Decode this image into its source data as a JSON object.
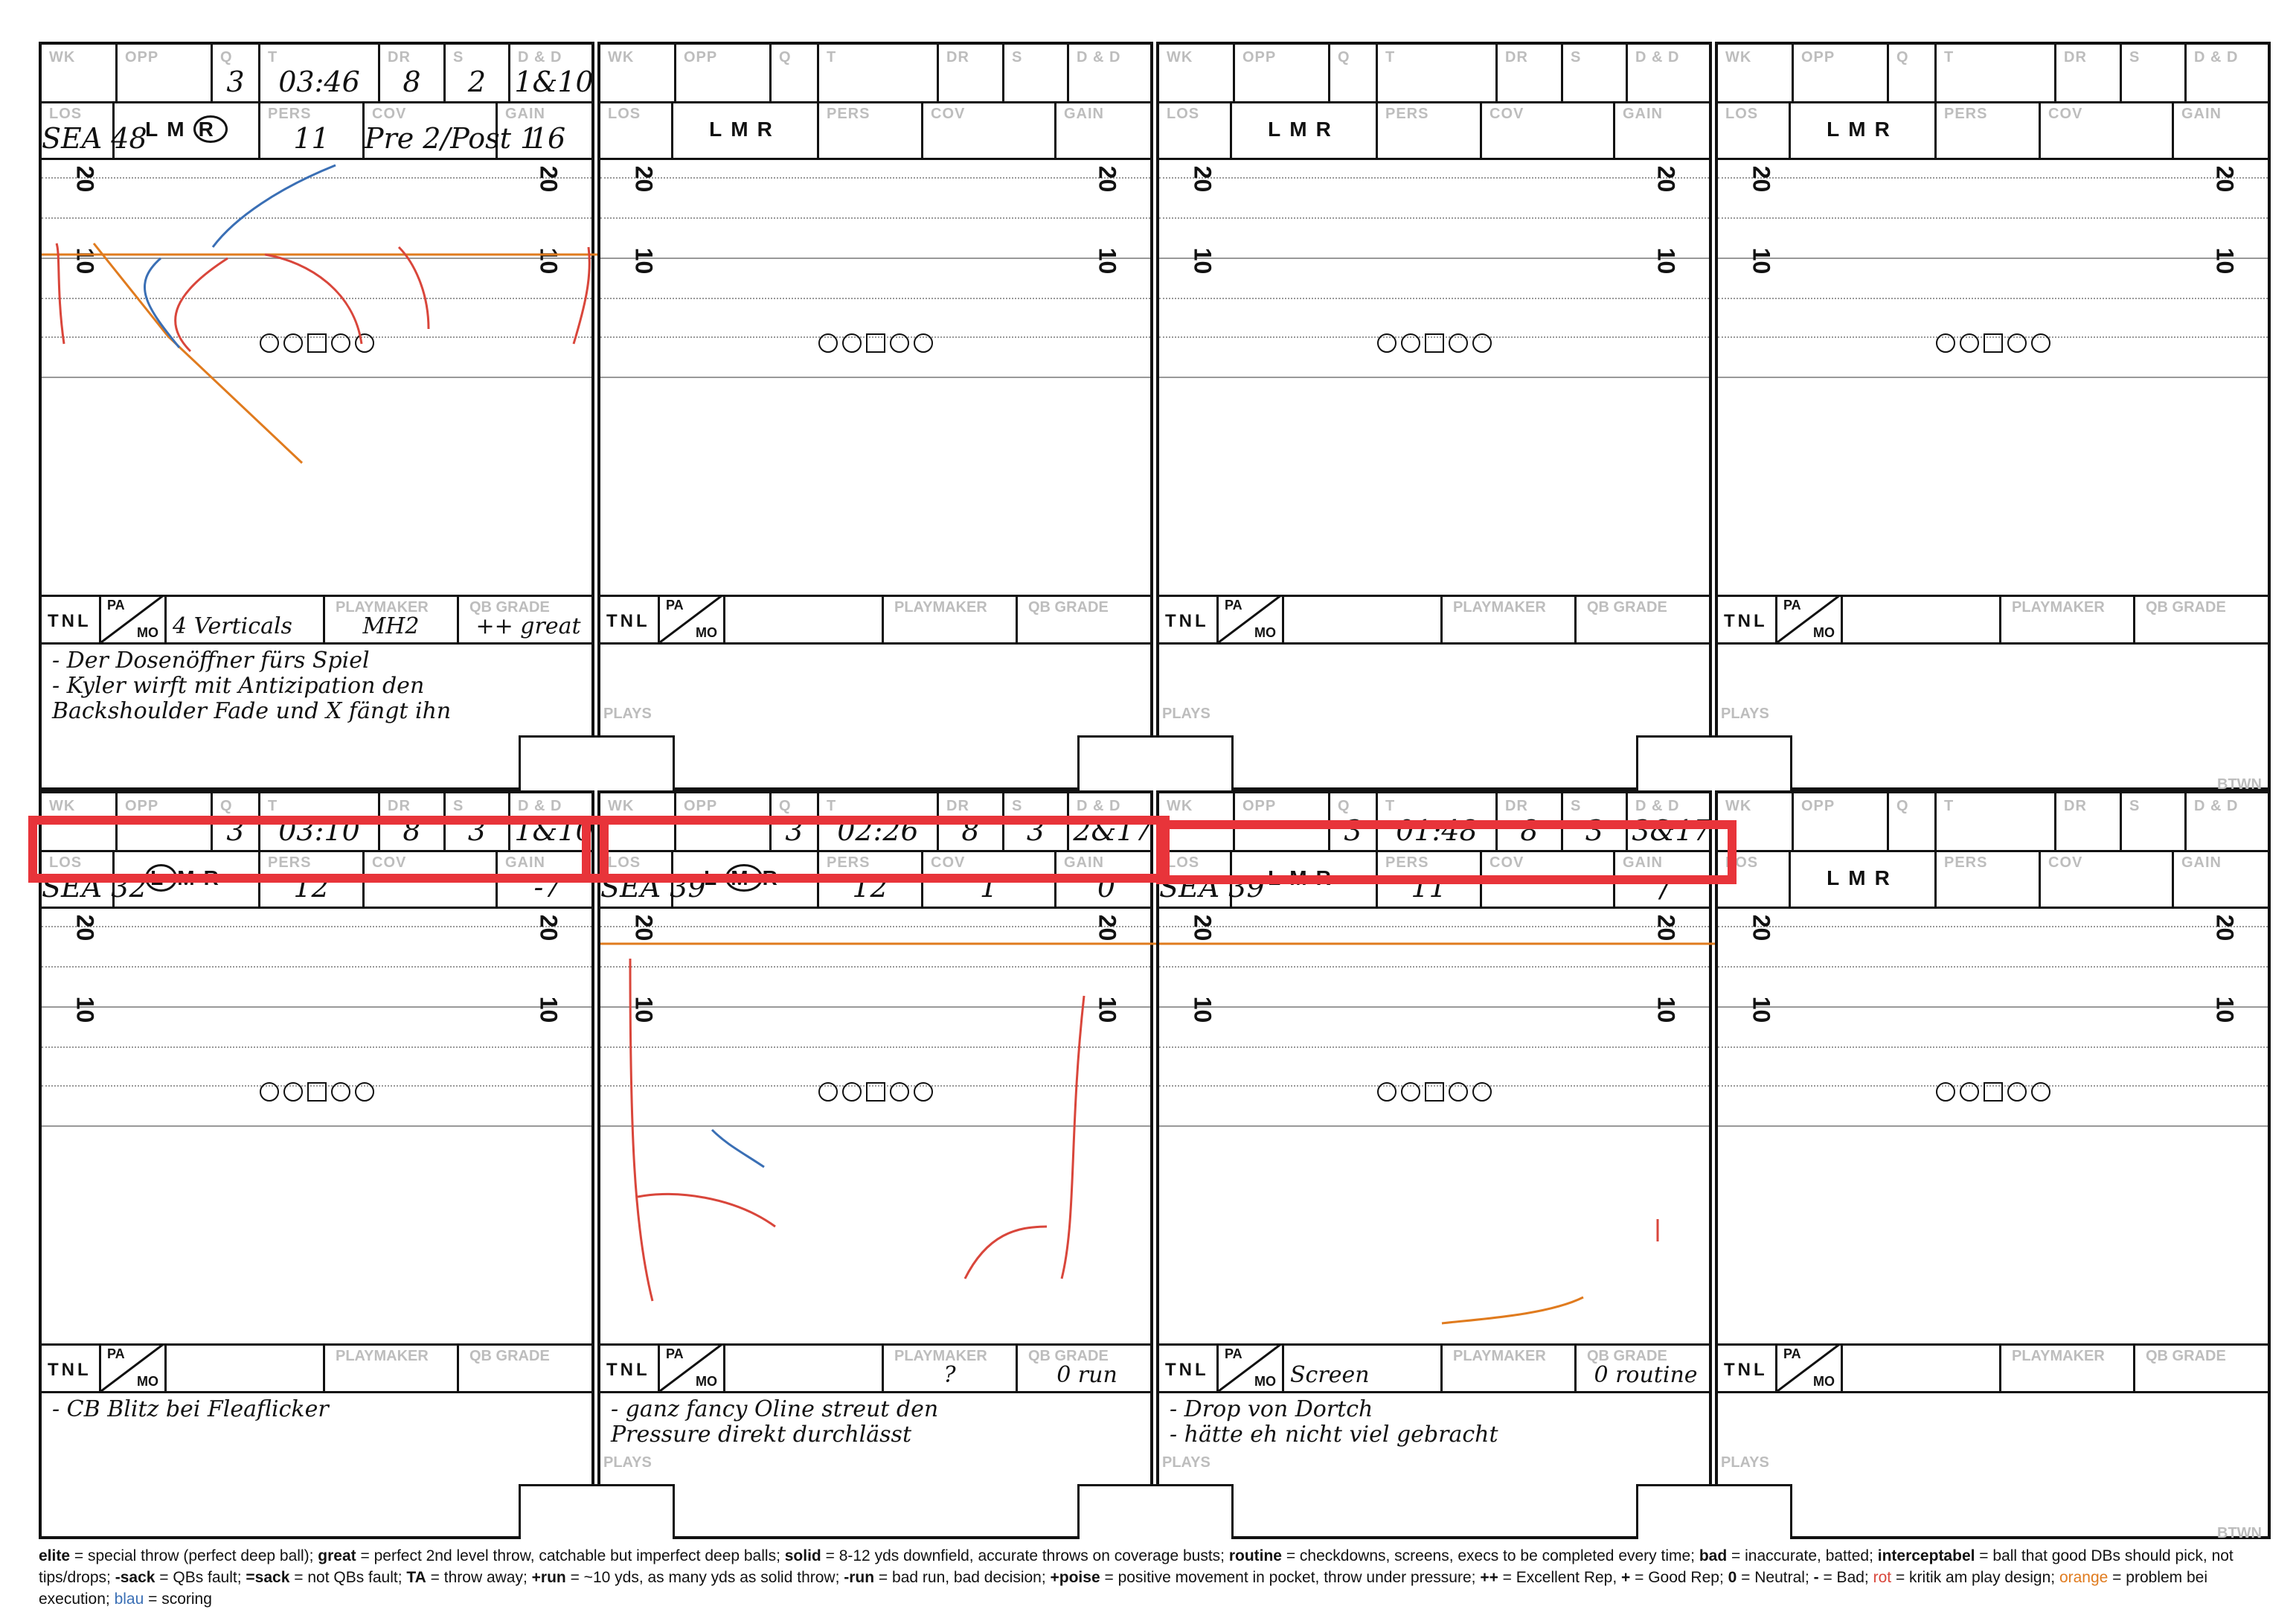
{
  "labels": {
    "wk": "WK",
    "opp": "OPP",
    "q": "Q",
    "t": "T",
    "dr": "DR",
    "s": "S",
    "dd": "D & D",
    "los": "LOS",
    "lmr": "LMR",
    "pers": "PERS",
    "cov": "COV",
    "gain": "GAIN",
    "tnl": "TNL",
    "pa": "PA",
    "mo": "MO",
    "playmaker": "PLAYMAKER",
    "qb_grade": "QB GRADE",
    "btwn": "BTWN",
    "plays": "PLAYS",
    "yard_20": "20",
    "yard_10": "10"
  },
  "cards": [
    {
      "q": "3",
      "t": "03:46",
      "dr": "8",
      "s": "2",
      "dd": "1&10",
      "los": "SEA 48",
      "lmr_circled": "R",
      "pers": "11",
      "cov": "Pre 2/Post 1",
      "gain": "16",
      "tnl": "",
      "pm": "MH2",
      "grade": "++ great",
      "play": "4 Verticals",
      "note": "- Der Dosenöffner fürs Spiel\n- Kyler wirft mit Antizipation den Backshoulder Fade und X fängt ihn"
    },
    {
      "q": "",
      "t": "",
      "dr": "",
      "s": "",
      "dd": "",
      "los": "",
      "lmr_circled": "",
      "pers": "",
      "cov": "",
      "gain": "",
      "tnl": "",
      "pm": "",
      "grade": "",
      "play": "",
      "note": ""
    },
    {
      "q": "",
      "t": "",
      "dr": "",
      "s": "",
      "dd": "",
      "los": "",
      "lmr_circled": "",
      "pers": "",
      "cov": "",
      "gain": "",
      "tnl": "",
      "pm": "",
      "grade": "",
      "play": "",
      "note": ""
    },
    {
      "q": "",
      "t": "",
      "dr": "",
      "s": "",
      "dd": "",
      "los": "",
      "lmr_circled": "",
      "pers": "",
      "cov": "",
      "gain": "",
      "tnl": "",
      "pm": "",
      "grade": "",
      "play": "",
      "note": ""
    },
    {
      "q": "3",
      "t": "03:10",
      "dr": "8",
      "s": "3",
      "dd": "1&10",
      "los": "SEA 32",
      "lmr_circled": "L",
      "pers": "12",
      "cov": "",
      "gain": "-7",
      "tnl": "",
      "pm": "",
      "grade": "",
      "play": "",
      "note": "- CB Blitz bei Fleaflicker"
    },
    {
      "q": "3",
      "t": "02:26",
      "dr": "8",
      "s": "3",
      "dd": "2&17",
      "los": "SEA 39",
      "lmr_circled": "M",
      "pers": "12",
      "cov": "1",
      "gain": "0",
      "tnl": "",
      "pm": "?",
      "grade": "0 run",
      "play": "",
      "note": "- ganz fancy Oline streut den\n   Pressure direkt durchlässt"
    },
    {
      "q": "3",
      "t": "01:48",
      "dr": "8",
      "s": "3",
      "dd": "3&17",
      "los": "SEA 39",
      "lmr_circled": "",
      "pers": "11",
      "cov": "",
      "gain": "/",
      "tnl": "",
      "pm": "",
      "grade": "0 routine",
      "play": "Screen",
      "note": "- Drop von Dortch\n   - hätte eh nicht viel gebracht"
    },
    {
      "q": "",
      "t": "",
      "dr": "",
      "s": "",
      "dd": "",
      "los": "",
      "lmr_circled": "",
      "pers": "",
      "cov": "",
      "gain": "",
      "tnl": "",
      "pm": "",
      "grade": "",
      "play": "",
      "note": ""
    }
  ],
  "legend": {
    "t1": "elite",
    "d1": " = special throw (perfect deep ball); ",
    "t2": "great",
    "d2": " = perfect 2nd level throw, catchable but imperfect deep balls; ",
    "t3": "solid",
    "d3": " = 8-12 yds downfield, accurate throws on coverage busts; ",
    "t4": "routine",
    "d4": " = checkdowns, screens, execs to be completed every time; ",
    "t5": "bad",
    "d5": " = inaccurate, batted; ",
    "t6": "interceptabel",
    "d6": " = ball that good DBs should pick, not tips/drops; ",
    "t7": "-sack",
    "d7": " = QBs fault; ",
    "t8": "=sack",
    "d8": " = not QBs fault; ",
    "t9": "TA",
    "d9": " = throw away; ",
    "t10": "+run",
    "d10": " = ~10 yds, as many yds as solid throw; ",
    "t11": "-run",
    "d11": " = bad run, bad decision; ",
    "t12": "+poise",
    "d12": " = positive movement in pocket, throw under pressure; ",
    "t13": "++",
    "d13": " = Excellent Rep, ",
    "t14": "+",
    "d14": " = Good Rep; ",
    "t15": "0",
    "d15": " = Neutral; ",
    "t16": "-",
    "d16": " = Bad; ",
    "rot": "rot",
    "drot": " = kritik am play design; ",
    "orange": "orange",
    "dorange": " = problem bei execution; ",
    "blau": "blau",
    "dblau": " = scoring"
  },
  "colors": {
    "highlight": "#e8343a",
    "red_route": "#d9463b",
    "blue_defender": "#3a6fb5",
    "orange_line": "#e07b1e"
  }
}
